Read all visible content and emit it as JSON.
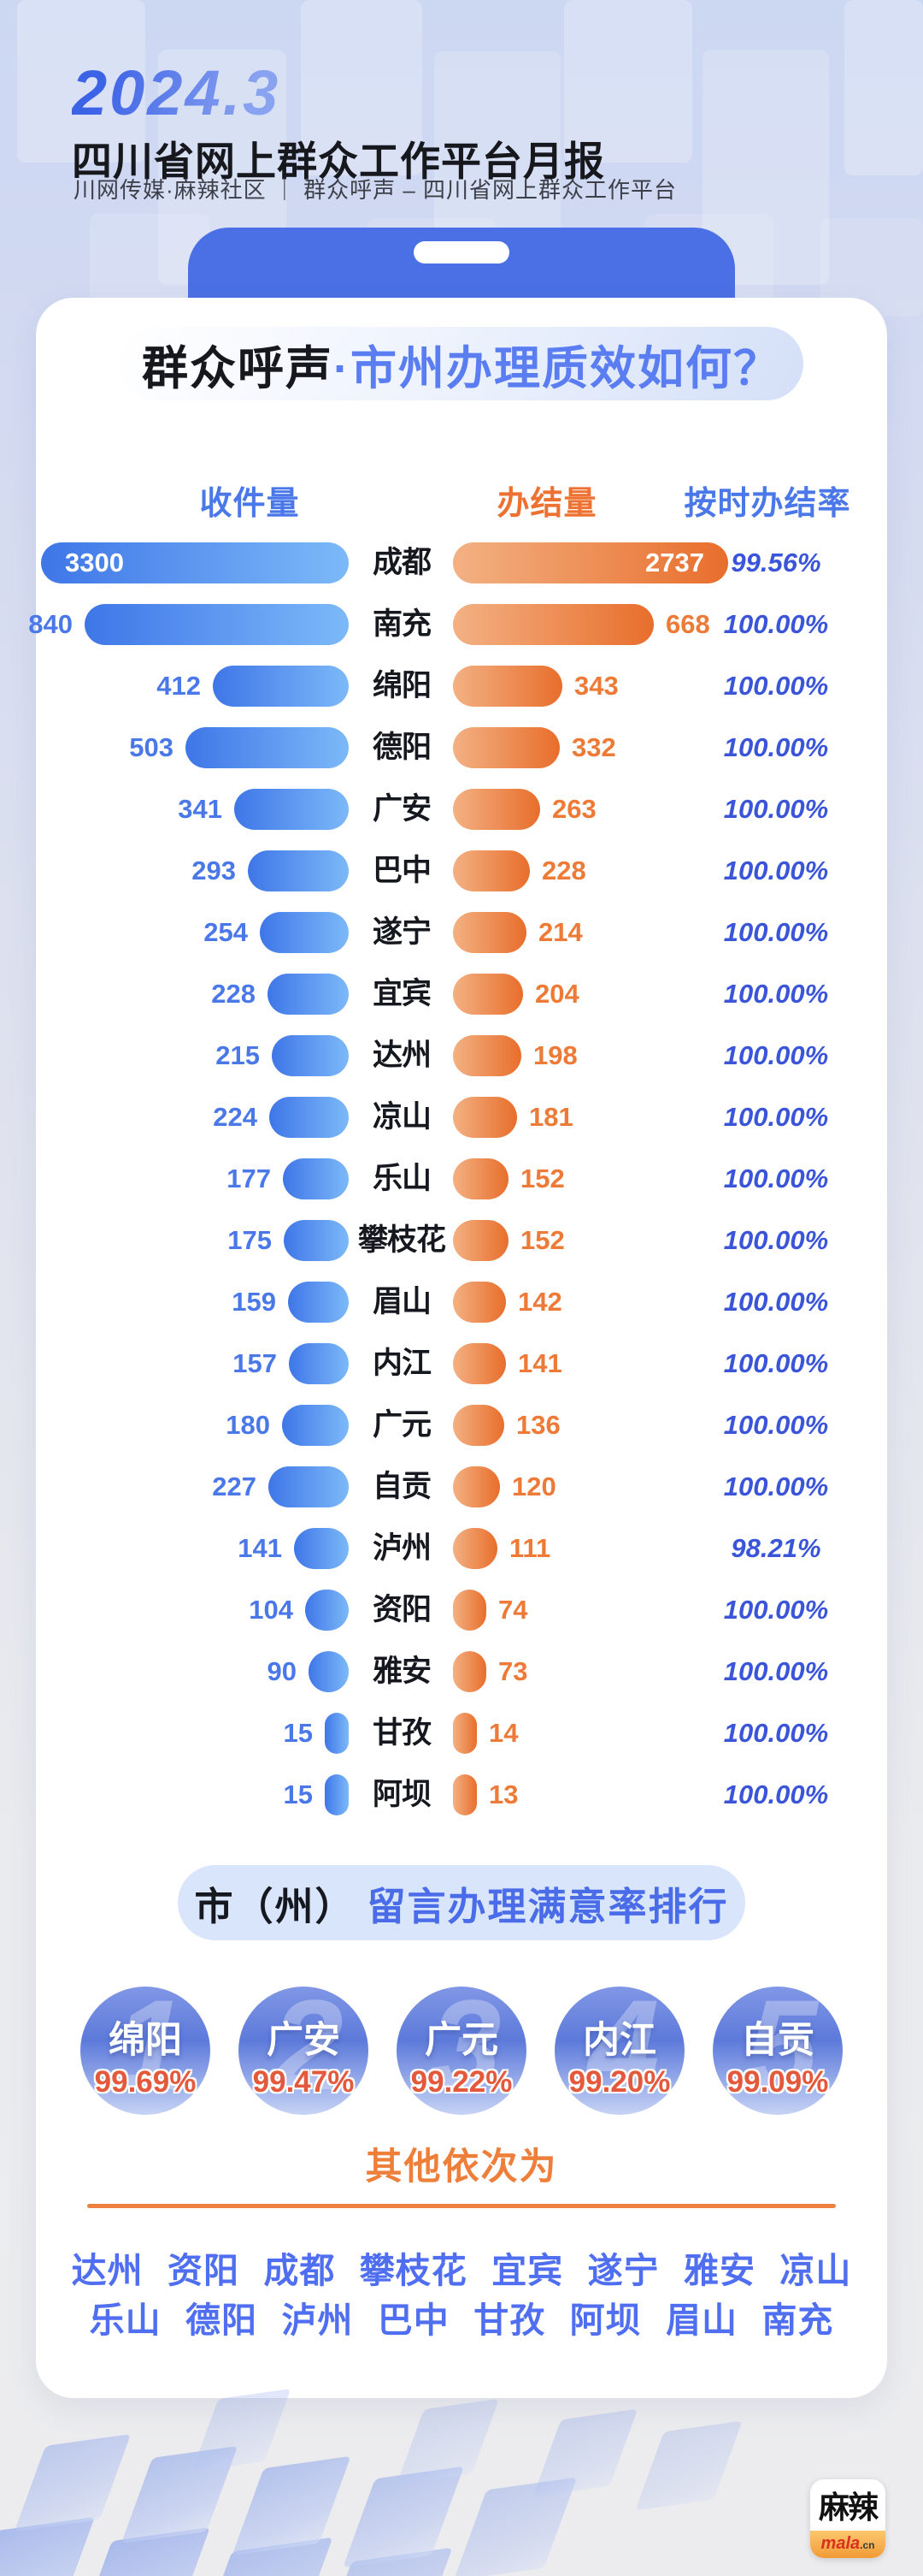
{
  "header": {
    "period": "2024.3",
    "title": "四川省网上群众工作平台月报",
    "subtitle": "川网传媒·麻辣社区 ｜ 群众呼声 – 四川省网上群众工作平台"
  },
  "card": {
    "title_black": "群众呼声",
    "title_blue": "·市州办理质效如何？",
    "columns": {
      "received": "收件量",
      "completed": "办结量",
      "on_time_rate": "按时办结率"
    }
  },
  "chart_data": {
    "type": "bar",
    "orientation": "horizontal-bidirectional",
    "title": "群众呼声·市州办理质效如何？",
    "categories": [
      "成都",
      "南充",
      "绵阳",
      "德阳",
      "广安",
      "巴中",
      "遂宁",
      "宜宾",
      "达州",
      "凉山",
      "乐山",
      "攀枝花",
      "眉山",
      "内江",
      "广元",
      "自贡",
      "泸州",
      "资阳",
      "雅安",
      "甘孜",
      "阿坝"
    ],
    "series": [
      {
        "name": "收件量",
        "values": [
          3300,
          840,
          412,
          503,
          341,
          293,
          254,
          228,
          215,
          224,
          177,
          175,
          159,
          157,
          180,
          227,
          141,
          104,
          90,
          15,
          15
        ]
      },
      {
        "name": "办结量",
        "values": [
          2737,
          668,
          343,
          332,
          263,
          228,
          214,
          204,
          198,
          181,
          152,
          152,
          142,
          141,
          136,
          120,
          111,
          74,
          73,
          14,
          13
        ]
      },
      {
        "name": "按时办结率",
        "values": [
          "99.56%",
          "100.00%",
          "100.00%",
          "100.00%",
          "100.00%",
          "100.00%",
          "100.00%",
          "100.00%",
          "100.00%",
          "100.00%",
          "100.00%",
          "100.00%",
          "100.00%",
          "100.00%",
          "100.00%",
          "100.00%",
          "98.21%",
          "100.00%",
          "100.00%",
          "100.00%",
          "100.00%"
        ]
      }
    ],
    "grid": false,
    "legend_position": "top"
  },
  "ranking": {
    "title_black": "市（州）",
    "title_blue": "留言办理满意率排行",
    "top5": [
      {
        "rank": "1",
        "city": "绵阳",
        "rate": "99.69%"
      },
      {
        "rank": "2",
        "city": "广安",
        "rate": "99.47%"
      },
      {
        "rank": "3",
        "city": "广元",
        "rate": "99.22%"
      },
      {
        "rank": "4",
        "city": "内江",
        "rate": "99.20%"
      },
      {
        "rank": "5",
        "city": "自贡",
        "rate": "99.09%"
      }
    ],
    "others_label": "其他依次为",
    "others_line1": "达州 资阳 成都 攀枝花 宜宾 遂宁 雅安 凉山",
    "others_line2": "乐山 德阳 泸州 巴中 甘孜 阿坝 眉山 南充"
  },
  "footer": {
    "logo_top": "麻辣",
    "logo_mala": "mala",
    "logo_cn": ".cn"
  },
  "colors": {
    "accent_blue": "#4a78e8",
    "accent_orange": "#ed7232",
    "rate_blue": "#3b55d9",
    "bar_blue_start": "#3f76e8",
    "bar_blue_end": "#7cb9f8",
    "bar_orange_start": "#f3b183",
    "bar_orange_end": "#e86e2c",
    "notch_blue": "#4b6fe4",
    "rank_percent_red": "#e4593b",
    "others_blue": "#4f6ef0"
  }
}
